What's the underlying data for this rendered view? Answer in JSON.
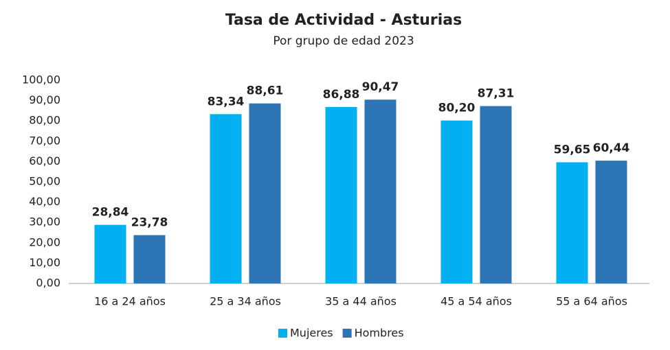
{
  "chart_data": {
    "type": "bar",
    "title": "Tasa de Actividad - Asturias",
    "subtitle": "Por grupo de edad 2023",
    "categories": [
      "16 a 24 años",
      "25 a 34 años",
      "35 a 44 años",
      "45 a 54 años",
      "55 a 64 años"
    ],
    "series": [
      {
        "name": "Mujeres",
        "color": "#00b0f0",
        "values": [
          28.84,
          83.34,
          86.88,
          80.2,
          59.65
        ],
        "value_labels": [
          "28,84",
          "83,34",
          "86,88",
          "80,20",
          "59,65"
        ]
      },
      {
        "name": "Hombres",
        "color": "#2e75b6",
        "values": [
          23.78,
          88.61,
          90.47,
          87.31,
          60.44
        ],
        "value_labels": [
          "23,78",
          "88,61",
          "90,47",
          "87,31",
          "60,44"
        ]
      }
    ],
    "ylim": [
      0,
      100
    ],
    "yticks": [
      {
        "value": 0,
        "label": "0,00"
      },
      {
        "value": 10,
        "label": "10,00"
      },
      {
        "value": 20,
        "label": "20,00"
      },
      {
        "value": 30,
        "label": "30,00"
      },
      {
        "value": 40,
        "label": "40,00"
      },
      {
        "value": 50,
        "label": "50,00"
      },
      {
        "value": 60,
        "label": "60,00"
      },
      {
        "value": 70,
        "label": "70,00"
      },
      {
        "value": 80,
        "label": "80,00"
      },
      {
        "value": 90,
        "label": "90,00"
      },
      {
        "value": 100,
        "label": "100,00"
      }
    ],
    "grid": false,
    "legend": "bottom"
  }
}
